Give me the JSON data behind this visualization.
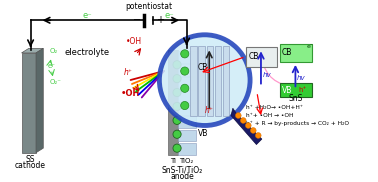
{
  "bg_color": "#ffffff",
  "cathode_face_color": "#7a8a8a",
  "cathode_top_color": "#9aacac",
  "cathode_side_color": "#5a6a6a",
  "ti_color": "#909898",
  "tio2_color": "#c8dce8",
  "tio2_edge_color": "#8899aa",
  "green_dot_color": "#44cc44",
  "electron_color": "#44cc44",
  "hole_color": "#cc0000",
  "mag_fill": "#d0ecf8",
  "mag_edge": "#2244bb",
  "handle_color": "#1a1a66",
  "orange_dot_color": "#ff8800",
  "cb_tio2_fill": "#e8eeee",
  "cb_sns_fill": "#88ee88",
  "vb_sns_fill": "#33bb33",
  "potentiostat_label": "potentiostat",
  "electrolyte_label": "electrolyte",
  "ss_cathode_label1": "SS",
  "ss_cathode_label2": "cathode",
  "anode_label1": "SnS-Ti/TiO₂",
  "anode_label2": "anode",
  "cb_label": "CB",
  "vb_label": "VB",
  "sns_label": "SnS",
  "ti_label": "Ti",
  "tio2_label": "TiO₂",
  "reaction1": "h⁺ +H₂O→ •OH+H⁺",
  "reaction2": "h⁺+ •OH → •OH",
  "reaction3": "h⁺ + R → by-products → CO₂ + H₂O"
}
